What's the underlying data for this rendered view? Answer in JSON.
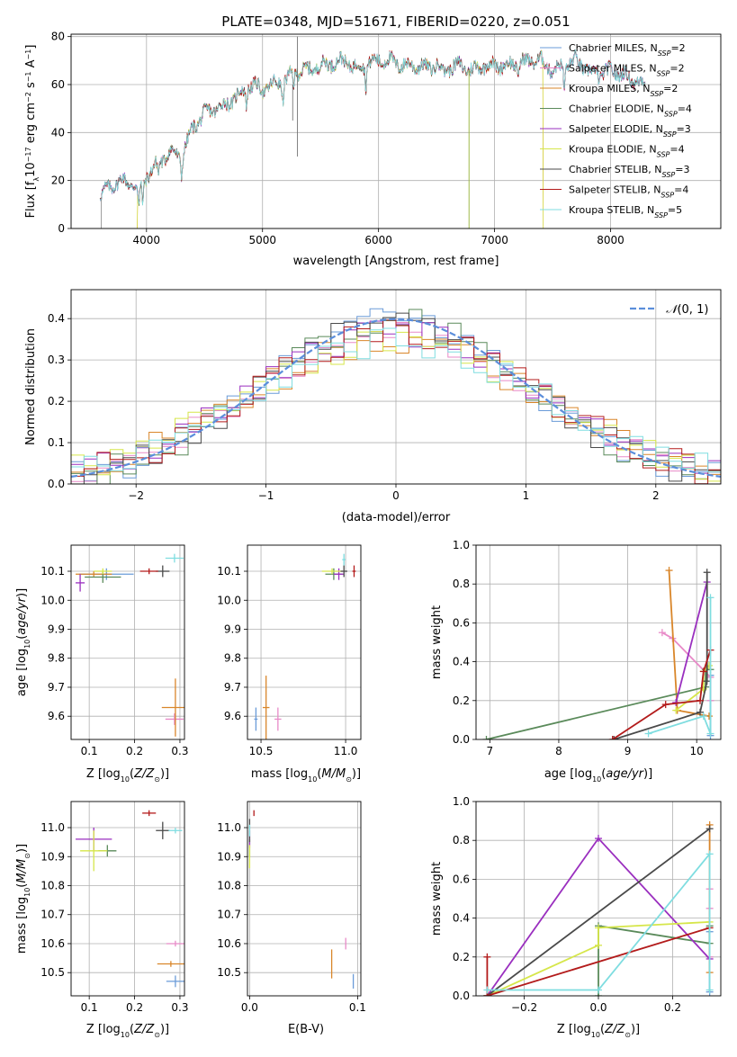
{
  "title": "PLATE=0348, MJD=51671, FIBERID=0220, z=0.051",
  "colors": {
    "series": [
      "#6a9bd8",
      "#e88ac8",
      "#d9862a",
      "#5a8a5a",
      "#9a2fbf",
      "#d6e64a",
      "#4a4a4a",
      "#b31b1b",
      "#7fdde0"
    ],
    "gauss": "#5b8edb",
    "grid": "#b0b0b0"
  },
  "series_names": [
    "Chabrier MILES, N_SSP=2",
    "Salpeter MILES, N_SSP=2",
    "Kroupa MILES, N_SSP=2",
    "Chabrier ELODIE, N_SSP=4",
    "Salpeter ELODIE, N_SSP=3",
    "Kroupa ELODIE, N_SSP=4",
    "Chabrier STELIB, N_SSP=3",
    "Salpeter STELIB, N_SSP=4",
    "Kroupa STELIB, N_SSP=5"
  ],
  "chart_data": [
    {
      "id": "spectrum",
      "type": "line",
      "xlabel": "wavelength [Angstrom, rest frame]",
      "ylabel": "Flux [f_λ 10^-17 erg cm^-2 s^-1 A^-1]",
      "xlim": [
        3350,
        8950
      ],
      "ylim": [
        0,
        81
      ],
      "xticks": [
        4000,
        5000,
        6000,
        7000,
        8000
      ],
      "yticks": [
        0,
        20,
        40,
        60,
        80
      ],
      "legend_position": "upper-right",
      "continuum": {
        "x": [
          3600,
          3700,
          3800,
          3900,
          3950,
          4000,
          4100,
          4200,
          4300,
          4400,
          4500,
          4600,
          4700,
          4800,
          4900,
          5000,
          5100,
          5200,
          5300,
          5400,
          5500,
          5600,
          5700,
          5800,
          5900,
          6000,
          6100,
          6200,
          6300,
          6400,
          6500,
          6600,
          6700,
          6800,
          6900,
          7000,
          7100,
          7200,
          7300,
          7400,
          7500,
          7600,
          7700,
          7800,
          7900,
          8000,
          8100,
          8200,
          8300
        ],
        "y": [
          14,
          18,
          20,
          18,
          17,
          22,
          27,
          32,
          30,
          42,
          48,
          50,
          52,
          56,
          60,
          58,
          60,
          62,
          66,
          66,
          68,
          69,
          70,
          67,
          69,
          70,
          70,
          68,
          68,
          67,
          68,
          67,
          68,
          66,
          68,
          68,
          68,
          69,
          70,
          70,
          66,
          68,
          70,
          66,
          64,
          66,
          64,
          62,
          60
        ]
      },
      "series_ranges": [
        [
          3600,
          8300
        ],
        [
          3600,
          8300
        ],
        [
          3920,
          7420
        ],
        [
          3600,
          8300
        ],
        [
          3600,
          8300
        ],
        [
          3920,
          7420
        ],
        [
          3600,
          8300
        ],
        [
          3600,
          8300
        ],
        [
          3600,
          8300
        ]
      ]
    },
    {
      "id": "residuals",
      "type": "histogram",
      "xlabel": "(data-model)/error",
      "ylabel": "Normed distribution",
      "xlim": [
        -2.5,
        2.5
      ],
      "ylim": [
        0,
        0.47
      ],
      "xticks": [
        -2,
        -1,
        0,
        1,
        2
      ],
      "yticks": [
        0.0,
        0.1,
        0.2,
        0.3,
        0.4
      ],
      "gauss_label": "N(0,1)",
      "legend_position": "upper-right",
      "bin_width": 0.1
    },
    {
      "id": "age_vs_Z",
      "type": "errorbar",
      "xlabel": "Z [log10(Z/Z⊙)]",
      "ylabel": "age [log10(age/yr)]",
      "xlim": [
        0.06,
        0.31
      ],
      "ylim": [
        9.52,
        10.19
      ],
      "xticks": [
        0.1,
        0.2,
        0.3
      ],
      "yticks": [
        9.6,
        9.7,
        9.8,
        9.9,
        10.0,
        10.1
      ],
      "points": [
        {
          "s": 0,
          "x": 0.138,
          "y": 10.09,
          "xerr": 0.06,
          "yerr": 0.02
        },
        {
          "s": 1,
          "x": 0.288,
          "y": 9.59,
          "xerr": 0.02,
          "yerr": 0.02
        },
        {
          "s": 2,
          "x": 0.11,
          "y": 10.09,
          "xerr": 0.04,
          "yerr": 0.01
        },
        {
          "s": 2,
          "x": 0.29,
          "y": 9.63,
          "xerr": 0.03,
          "yerr": 0.1
        },
        {
          "s": 3,
          "x": 0.13,
          "y": 10.08,
          "xerr": 0.04,
          "yerr": 0.02
        },
        {
          "s": 4,
          "x": 0.08,
          "y": 10.06,
          "xerr": 0.01,
          "yerr": 0.03
        },
        {
          "s": 5,
          "x": 0.13,
          "y": 10.1,
          "xerr": 0.02,
          "yerr": 0.01
        },
        {
          "s": 6,
          "x": 0.262,
          "y": 10.1,
          "xerr": 0.015,
          "yerr": 0.02
        },
        {
          "s": 7,
          "x": 0.232,
          "y": 10.1,
          "xerr": 0.02,
          "yerr": 0.01
        },
        {
          "s": 8,
          "x": 0.288,
          "y": 10.145,
          "xerr": 0.02,
          "yerr": 0.015
        }
      ]
    },
    {
      "id": "age_vs_mass",
      "type": "errorbar",
      "xlabel": "mass [log10(M/M⊙)]",
      "ylabel": "",
      "xlim": [
        10.42,
        11.09
      ],
      "ylim": [
        9.52,
        10.19
      ],
      "xticks": [
        10.5,
        11.0
      ],
      "yticks": [
        9.6,
        9.7,
        9.8,
        9.9,
        10.0,
        10.1
      ],
      "points": [
        {
          "s": 0,
          "x": 10.47,
          "y": 9.59,
          "xerr": 0.01,
          "yerr": 0.04
        },
        {
          "s": 1,
          "x": 10.6,
          "y": 9.59,
          "xerr": 0.02,
          "yerr": 0.04
        },
        {
          "s": 2,
          "x": 10.53,
          "y": 9.63,
          "xerr": 0.02,
          "yerr": 0.11
        },
        {
          "s": 3,
          "x": 10.93,
          "y": 10.09,
          "xerr": 0.05,
          "yerr": 0.02
        },
        {
          "s": 4,
          "x": 10.96,
          "y": 10.09,
          "xerr": 0.03,
          "yerr": 0.02
        },
        {
          "s": 5,
          "x": 10.92,
          "y": 10.1,
          "xerr": 0.06,
          "yerr": 0.01
        },
        {
          "s": 6,
          "x": 10.99,
          "y": 10.1,
          "xerr": 0.02,
          "yerr": 0.02
        },
        {
          "s": 7,
          "x": 11.05,
          "y": 10.1,
          "xerr": 0.01,
          "yerr": 0.02
        },
        {
          "s": 8,
          "x": 10.99,
          "y": 10.14,
          "xerr": 0.01,
          "yerr": 0.02
        }
      ]
    },
    {
      "id": "weight_vs_age",
      "type": "line",
      "xlabel": "age [log10(age/yr)]",
      "ylabel": "mass weight",
      "xlim": [
        6.8,
        10.35
      ],
      "ylim": [
        0,
        1.0
      ],
      "xticks": [
        7,
        8,
        9,
        10
      ],
      "yticks": [
        0.0,
        0.2,
        0.4,
        0.6,
        0.8,
        1.0
      ],
      "series": [
        {
          "s": 0,
          "x": [
            10.2,
            10.2
          ],
          "y": [
            0.02,
            0.33
          ]
        },
        {
          "s": 1,
          "x": [
            9.5,
            9.65,
            10.2,
            10.2
          ],
          "y": [
            0.55,
            0.52,
            0.32,
            0.2
          ]
        },
        {
          "s": 2,
          "x": [
            9.6,
            9.72,
            10.18
          ],
          "y": [
            0.87,
            0.15,
            0.12
          ]
        },
        {
          "s": 3,
          "x": [
            6.95,
            10.13,
            10.13,
            10.2
          ],
          "y": [
            0.0,
            0.27,
            0.36,
            0.36
          ]
        },
        {
          "s": 4,
          "x": [
            9.7,
            10.15
          ],
          "y": [
            0.19,
            0.81
          ]
        },
        {
          "s": 5,
          "x": [
            9.7,
            10.1,
            10.1,
            10.18
          ],
          "y": [
            0.15,
            0.26,
            0.35,
            0.38
          ]
        },
        {
          "s": 6,
          "x": [
            8.8,
            10.05,
            10.15,
            10.15
          ],
          "y": [
            0.0,
            0.14,
            0.3,
            0.86
          ]
        },
        {
          "s": 7,
          "x": [
            8.78,
            9.55,
            10.05,
            10.1,
            10.2
          ],
          "y": [
            0.0,
            0.18,
            0.2,
            0.35,
            0.46
          ]
        },
        {
          "s": 8,
          "x": [
            9.3,
            10.1,
            10.2,
            10.2
          ],
          "y": [
            0.03,
            0.12,
            0.03,
            0.73
          ]
        }
      ]
    },
    {
      "id": "mass_vs_Z",
      "type": "errorbar",
      "xlabel": "Z [log10(Z/Z⊙)]",
      "ylabel": "mass [log10(M/M⊙)]",
      "xlim": [
        0.06,
        0.31
      ],
      "ylim": [
        10.42,
        11.09
      ],
      "xticks": [
        0.1,
        0.2,
        0.3
      ],
      "yticks": [
        10.5,
        10.6,
        10.7,
        10.8,
        10.9,
        11.0
      ],
      "points": [
        {
          "s": 0,
          "x": 0.29,
          "y": 10.47,
          "xerr": 0.02,
          "yerr": 0.02
        },
        {
          "s": 1,
          "x": 0.29,
          "y": 10.6,
          "xerr": 0.02,
          "yerr": 0.01
        },
        {
          "s": 2,
          "x": 0.28,
          "y": 10.53,
          "xerr": 0.03,
          "yerr": 0.01
        },
        {
          "s": 3,
          "x": 0.14,
          "y": 10.92,
          "xerr": 0.02,
          "yerr": 0.02
        },
        {
          "s": 4,
          "x": 0.11,
          "y": 10.96,
          "xerr": 0.04,
          "yerr": 0.04
        },
        {
          "s": 5,
          "x": 0.11,
          "y": 10.92,
          "xerr": 0.03,
          "yerr": 0.07
        },
        {
          "s": 6,
          "x": 0.262,
          "y": 10.99,
          "xerr": 0.015,
          "yerr": 0.03
        },
        {
          "s": 7,
          "x": 0.232,
          "y": 11.05,
          "xerr": 0.015,
          "yerr": 0.01
        },
        {
          "s": 8,
          "x": 0.29,
          "y": 10.99,
          "xerr": 0.015,
          "yerr": 0.01
        }
      ]
    },
    {
      "id": "mass_vs_ebv",
      "type": "errorbar",
      "xlabel": "E(B-V)",
      "ylabel": "",
      "xlim": [
        -0.002,
        0.103
      ],
      "ylim": [
        10.42,
        11.09
      ],
      "xticks": [
        0.0,
        0.1
      ],
      "yticks": [
        10.5,
        10.6,
        10.7,
        10.8,
        10.9,
        11.0
      ],
      "points": [
        {
          "s": 0,
          "x": 0.096,
          "y": 10.47,
          "xerr": 0.0,
          "yerr": 0.025
        },
        {
          "s": 1,
          "x": 0.089,
          "y": 10.6,
          "xerr": 0.0,
          "yerr": 0.02
        },
        {
          "s": 2,
          "x": 0.076,
          "y": 10.53,
          "xerr": 0.0,
          "yerr": 0.05
        },
        {
          "s": 3,
          "x": 0.0,
          "y": 10.93,
          "xerr": 0.0,
          "yerr": 0.03
        },
        {
          "s": 4,
          "x": 0.0,
          "y": 10.96,
          "xerr": 0.0,
          "yerr": 0.03
        },
        {
          "s": 5,
          "x": 0.0,
          "y": 10.9,
          "xerr": 0.0,
          "yerr": 0.04
        },
        {
          "s": 6,
          "x": 0.0,
          "y": 10.99,
          "xerr": 0.0,
          "yerr": 0.04
        },
        {
          "s": 7,
          "x": 0.004,
          "y": 11.05,
          "xerr": 0.0,
          "yerr": 0.01
        },
        {
          "s": 8,
          "x": 0.0,
          "y": 10.99,
          "xerr": 0.0,
          "yerr": 0.02
        }
      ]
    },
    {
      "id": "weight_vs_Z",
      "type": "line",
      "xlabel": "Z [log10(Z/Z⊙)]",
      "ylabel": "mass weight",
      "xlim": [
        -0.33,
        0.33
      ],
      "ylim": [
        0,
        1.0
      ],
      "xticks": [
        -0.2,
        0.0,
        0.2
      ],
      "yticks": [
        0.0,
        0.2,
        0.4,
        0.6,
        0.8,
        1.0
      ],
      "series": [
        {
          "s": 0,
          "x": [
            0.3,
            0.3
          ],
          "y": [
            0.02,
            0.33
          ]
        },
        {
          "s": 1,
          "x": [
            0.3,
            0.3,
            0.3
          ],
          "y": [
            0.2,
            0.45,
            0.55
          ]
        },
        {
          "s": 2,
          "x": [
            0.3,
            0.3
          ],
          "y": [
            0.12,
            0.88
          ]
        },
        {
          "s": 3,
          "x": [
            0.0,
            0.0,
            0.3,
            0.3
          ],
          "y": [
            0.0,
            0.36,
            0.27,
            0.36
          ]
        },
        {
          "s": 4,
          "x": [
            -0.3,
            0.0,
            0.3
          ],
          "y": [
            0.0,
            0.81,
            0.19
          ]
        },
        {
          "s": 5,
          "x": [
            -0.3,
            0.0,
            0.0,
            0.3
          ],
          "y": [
            0.0,
            0.26,
            0.35,
            0.38
          ]
        },
        {
          "s": 6,
          "x": [
            -0.3,
            0.3
          ],
          "y": [
            0.0,
            0.86
          ]
        },
        {
          "s": 7,
          "x": [
            -0.3,
            -0.3,
            -0.3,
            0.3
          ],
          "y": [
            0.0,
            0.2,
            0.0,
            0.35
          ]
        },
        {
          "s": 8,
          "x": [
            -0.3,
            0.0,
            0.3,
            0.3
          ],
          "y": [
            0.03,
            0.03,
            0.73,
            0.03
          ]
        }
      ]
    }
  ]
}
